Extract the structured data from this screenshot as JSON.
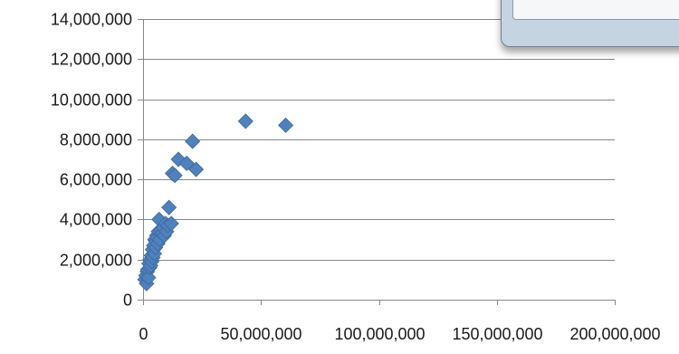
{
  "chart_data": {
    "type": "scatter",
    "title": "",
    "xlabel": "",
    "ylabel": "",
    "xlim": [
      0,
      200000000
    ],
    "ylim": [
      0,
      14000000
    ],
    "x_ticks": [
      0,
      50000000,
      100000000,
      150000000,
      200000000
    ],
    "y_ticks": [
      0,
      2000000,
      4000000,
      6000000,
      8000000,
      10000000,
      12000000,
      14000000
    ],
    "x_tick_labels": [
      "0",
      "50,000,000",
      "100,000,000",
      "150,000,000",
      "200,000,000"
    ],
    "y_tick_labels": [
      "0",
      "2,000,000",
      "4,000,000",
      "6,000,000",
      "8,000,000",
      "10,000,000",
      "12,000,000",
      "14,000,000"
    ],
    "grid": "horizontal",
    "marker": "diamond",
    "series": [
      {
        "color": "#4f81bd",
        "points": [
          [
            800000,
            1000000
          ],
          [
            1500000,
            800000
          ],
          [
            1200000,
            1200000
          ],
          [
            1800000,
            1400000
          ],
          [
            2000000,
            1500000
          ],
          [
            2300000,
            1100000
          ],
          [
            2500000,
            1800000
          ],
          [
            2800000,
            1600000
          ],
          [
            3000000,
            2000000
          ],
          [
            3200000,
            1700000
          ],
          [
            3500000,
            2200000
          ],
          [
            3700000,
            1900000
          ],
          [
            4000000,
            2500000
          ],
          [
            4200000,
            2100000
          ],
          [
            4500000,
            2700000
          ],
          [
            4800000,
            2300000
          ],
          [
            5000000,
            3000000
          ],
          [
            5300000,
            2600000
          ],
          [
            5500000,
            2900000
          ],
          [
            5800000,
            3200000
          ],
          [
            6000000,
            3100000
          ],
          [
            6300000,
            2800000
          ],
          [
            6500000,
            3400000
          ],
          [
            6800000,
            4000000
          ],
          [
            7000000,
            3000000
          ],
          [
            7500000,
            3500000
          ],
          [
            8000000,
            3300000
          ],
          [
            8500000,
            3600000
          ],
          [
            9000000,
            3200000
          ],
          [
            9500000,
            3800000
          ],
          [
            10000000,
            3400000
          ],
          [
            10500000,
            3700000
          ],
          [
            11000000,
            4600000
          ],
          [
            12000000,
            3800000
          ],
          [
            12500000,
            6300000
          ],
          [
            13500000,
            6200000
          ],
          [
            15000000,
            7000000
          ],
          [
            18500000,
            6800000
          ],
          [
            21000000,
            7900000
          ],
          [
            22500000,
            6500000
          ],
          [
            43500000,
            8900000
          ],
          [
            60500000,
            8700000
          ]
        ]
      }
    ]
  },
  "dialog": {
    "visible": true
  }
}
